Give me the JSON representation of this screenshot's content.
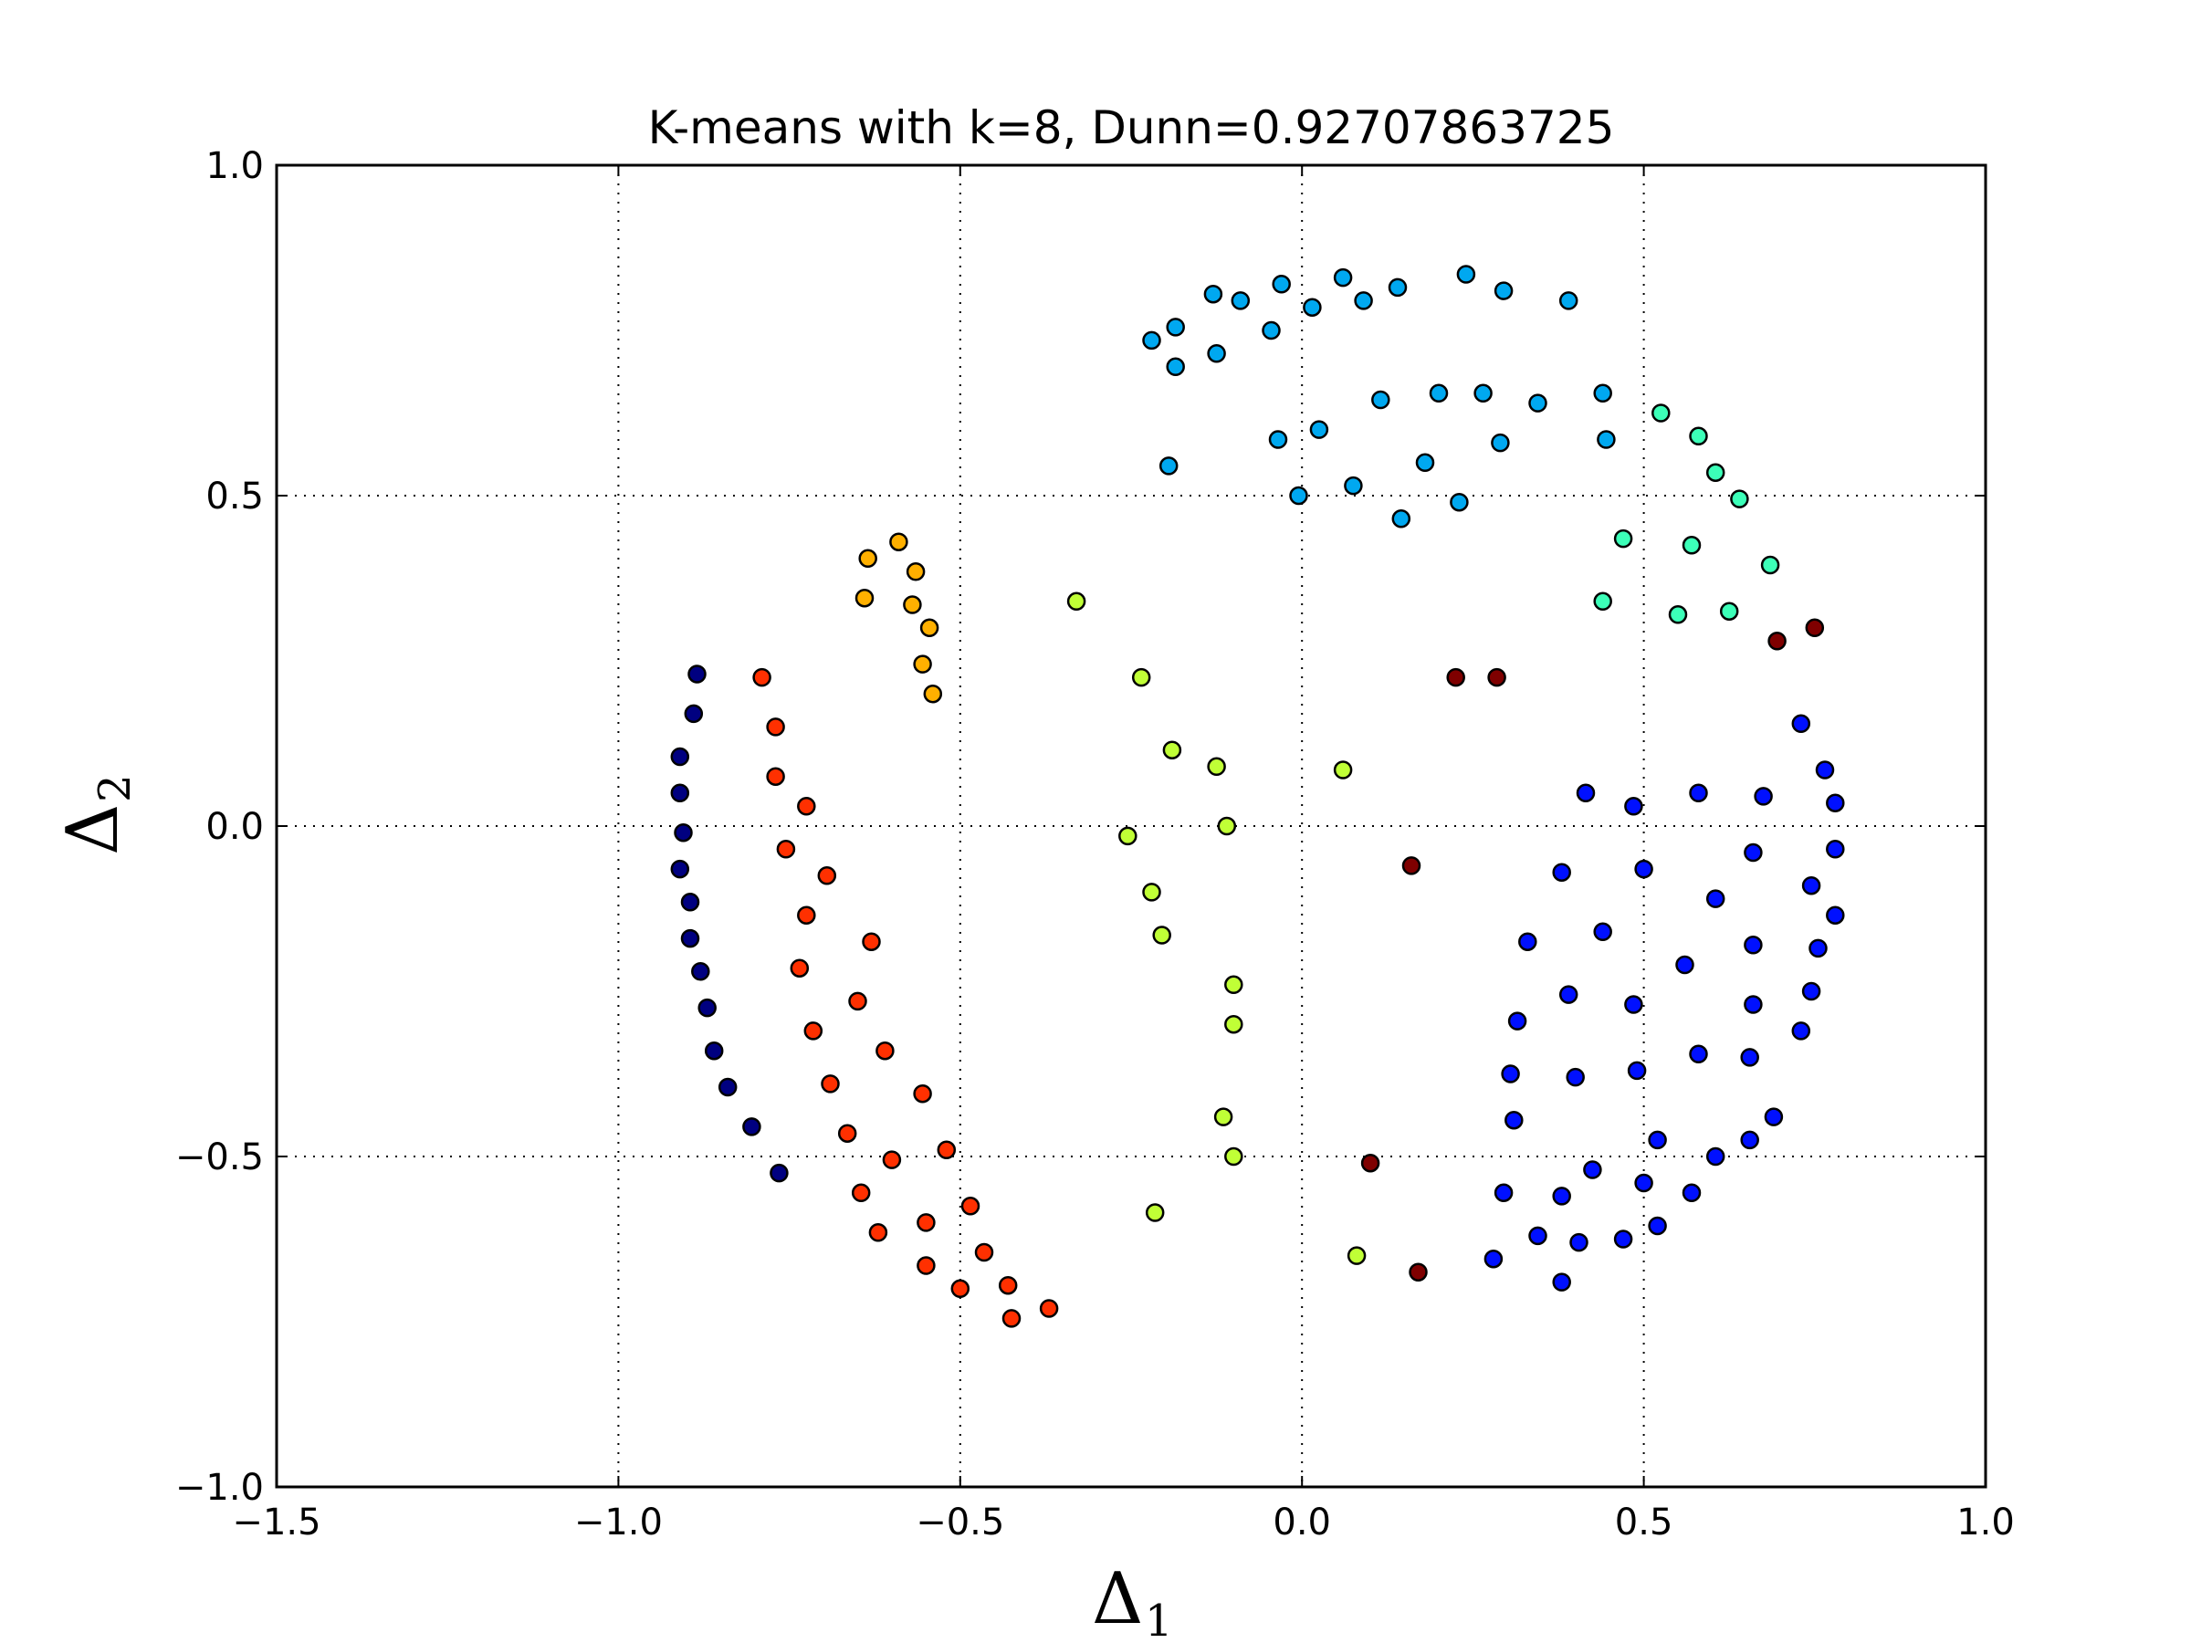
{
  "chart_data": {
    "type": "scatter",
    "title": "K-means with k=8, Dunn=0.92707863725",
    "xlabel": "Δ",
    "xlabel_sub": "1",
    "ylabel": "Δ",
    "ylabel_sub": "2",
    "xlim": [
      -1.5,
      1.0
    ],
    "ylim": [
      -1.0,
      1.0
    ],
    "xticks": [
      -1.5,
      -1.0,
      -0.5,
      0.0,
      0.5,
      1.0
    ],
    "xtick_labels": [
      "−1.5",
      "−1.0",
      "−0.5",
      "0.0",
      "0.5",
      "1.0"
    ],
    "yticks": [
      -1.0,
      -0.5,
      0.0,
      0.5,
      1.0
    ],
    "ytick_labels": [
      "−1.0",
      "−0.5",
      "0.0",
      "0.5",
      "1.0"
    ],
    "grid": true,
    "series": [
      {
        "color": "#00a8f0",
        "points": [
          [
            -0.22,
            0.735
          ],
          [
            -0.185,
            0.755
          ],
          [
            -0.13,
            0.805
          ],
          [
            -0.09,
            0.795
          ],
          [
            -0.03,
            0.82
          ],
          [
            0.06,
            0.83
          ],
          [
            0.14,
            0.815
          ],
          [
            0.24,
            0.835
          ],
          [
            0.295,
            0.81
          ],
          [
            0.39,
            0.795
          ],
          [
            -0.185,
            0.695
          ],
          [
            -0.125,
            0.715
          ],
          [
            -0.045,
            0.75
          ],
          [
            0.015,
            0.785
          ],
          [
            0.09,
            0.795
          ],
          [
            0.115,
            0.645
          ],
          [
            0.2,
            0.655
          ],
          [
            0.265,
            0.655
          ],
          [
            0.345,
            0.64
          ],
          [
            0.44,
            0.655
          ],
          [
            -0.035,
            0.585
          ],
          [
            0.025,
            0.6
          ],
          [
            0.18,
            0.55
          ],
          [
            0.29,
            0.58
          ],
          [
            0.445,
            0.585
          ],
          [
            -0.195,
            0.545
          ],
          [
            -0.005,
            0.5
          ],
          [
            0.075,
            0.515
          ],
          [
            0.23,
            0.49
          ],
          [
            0.145,
            0.465
          ]
        ]
      },
      {
        "color": "#3cffb8",
        "points": [
          [
            0.525,
            0.625
          ],
          [
            0.58,
            0.59
          ],
          [
            0.605,
            0.535
          ],
          [
            0.64,
            0.495
          ],
          [
            0.47,
            0.435
          ],
          [
            0.57,
            0.425
          ],
          [
            0.685,
            0.395
          ],
          [
            0.44,
            0.34
          ],
          [
            0.55,
            0.32
          ],
          [
            0.625,
            0.325
          ]
        ]
      },
      {
        "color": "#7f0000",
        "points": [
          [
            0.225,
            0.225
          ],
          [
            0.285,
            0.225
          ],
          [
            0.695,
            0.28
          ],
          [
            0.75,
            0.3
          ],
          [
            0.16,
            -0.06
          ],
          [
            0.1,
            -0.51
          ],
          [
            0.17,
            -0.675
          ]
        ]
      },
      {
        "color": "#ffb000",
        "points": [
          [
            -0.59,
            0.43
          ],
          [
            -0.635,
            0.405
          ],
          [
            -0.565,
            0.385
          ],
          [
            -0.64,
            0.345
          ],
          [
            -0.57,
            0.335
          ],
          [
            -0.545,
            0.3
          ],
          [
            -0.555,
            0.245
          ],
          [
            -0.54,
            0.2
          ]
        ]
      },
      {
        "color": "#c0ff36",
        "points": [
          [
            -0.33,
            0.34
          ],
          [
            -0.235,
            0.225
          ],
          [
            -0.19,
            0.115
          ],
          [
            -0.125,
            0.09
          ],
          [
            0.06,
            0.085
          ],
          [
            -0.255,
            -0.015
          ],
          [
            -0.11,
            0.0
          ],
          [
            -0.22,
            -0.1
          ],
          [
            -0.205,
            -0.165
          ],
          [
            -0.1,
            -0.24
          ],
          [
            -0.1,
            -0.3
          ],
          [
            -0.115,
            -0.44
          ],
          [
            -0.1,
            -0.5
          ],
          [
            -0.215,
            -0.585
          ],
          [
            0.08,
            -0.65
          ]
        ]
      },
      {
        "color": "#000080",
        "points": [
          [
            -0.885,
            0.23
          ],
          [
            -0.89,
            0.17
          ],
          [
            -0.91,
            0.105
          ],
          [
            -0.91,
            0.05
          ],
          [
            -0.905,
            -0.01
          ],
          [
            -0.91,
            -0.065
          ],
          [
            -0.895,
            -0.115
          ],
          [
            -0.895,
            -0.17
          ],
          [
            -0.88,
            -0.22
          ],
          [
            -0.87,
            -0.275
          ],
          [
            -0.86,
            -0.34
          ],
          [
            -0.84,
            -0.395
          ],
          [
            -0.805,
            -0.455
          ],
          [
            -0.765,
            -0.525
          ]
        ]
      },
      {
        "color": "#ff3000",
        "points": [
          [
            -0.79,
            0.225
          ],
          [
            -0.77,
            0.15
          ],
          [
            -0.77,
            0.075
          ],
          [
            -0.725,
            0.03
          ],
          [
            -0.755,
            -0.035
          ],
          [
            -0.695,
            -0.075
          ],
          [
            -0.725,
            -0.135
          ],
          [
            -0.63,
            -0.175
          ],
          [
            -0.735,
            -0.215
          ],
          [
            -0.65,
            -0.265
          ],
          [
            -0.715,
            -0.31
          ],
          [
            -0.61,
            -0.34
          ],
          [
            -0.69,
            -0.39
          ],
          [
            -0.555,
            -0.405
          ],
          [
            -0.665,
            -0.465
          ],
          [
            -0.6,
            -0.505
          ],
          [
            -0.52,
            -0.49
          ],
          [
            -0.645,
            -0.555
          ],
          [
            -0.485,
            -0.575
          ],
          [
            -0.55,
            -0.6
          ],
          [
            -0.62,
            -0.615
          ],
          [
            -0.465,
            -0.645
          ],
          [
            -0.55,
            -0.665
          ],
          [
            -0.5,
            -0.7
          ],
          [
            -0.43,
            -0.695
          ],
          [
            -0.425,
            -0.745
          ],
          [
            -0.37,
            -0.73
          ]
        ]
      },
      {
        "color": "#0010ff",
        "points": [
          [
            0.415,
            0.05
          ],
          [
            0.485,
            0.03
          ],
          [
            0.58,
            0.05
          ],
          [
            0.675,
            0.045
          ],
          [
            0.765,
            0.085
          ],
          [
            0.78,
            0.035
          ],
          [
            0.73,
            0.155
          ],
          [
            0.38,
            -0.07
          ],
          [
            0.5,
            -0.065
          ],
          [
            0.66,
            -0.04
          ],
          [
            0.78,
            -0.035
          ],
          [
            0.745,
            -0.09
          ],
          [
            0.605,
            -0.11
          ],
          [
            0.78,
            -0.135
          ],
          [
            0.33,
            -0.175
          ],
          [
            0.44,
            -0.16
          ],
          [
            0.66,
            -0.18
          ],
          [
            0.755,
            -0.185
          ],
          [
            0.56,
            -0.21
          ],
          [
            0.39,
            -0.255
          ],
          [
            0.485,
            -0.27
          ],
          [
            0.66,
            -0.27
          ],
          [
            0.745,
            -0.25
          ],
          [
            0.315,
            -0.295
          ],
          [
            0.58,
            -0.345
          ],
          [
            0.655,
            -0.35
          ],
          [
            0.73,
            -0.31
          ],
          [
            0.305,
            -0.375
          ],
          [
            0.4,
            -0.38
          ],
          [
            0.49,
            -0.37
          ],
          [
            0.31,
            -0.445
          ],
          [
            0.69,
            -0.44
          ],
          [
            0.52,
            -0.475
          ],
          [
            0.655,
            -0.475
          ],
          [
            0.605,
            -0.5
          ],
          [
            0.425,
            -0.52
          ],
          [
            0.5,
            -0.54
          ],
          [
            0.295,
            -0.555
          ],
          [
            0.38,
            -0.56
          ],
          [
            0.57,
            -0.555
          ],
          [
            0.345,
            -0.62
          ],
          [
            0.405,
            -0.63
          ],
          [
            0.47,
            -0.625
          ],
          [
            0.52,
            -0.605
          ],
          [
            0.28,
            -0.655
          ],
          [
            0.38,
            -0.69
          ]
        ]
      }
    ]
  }
}
